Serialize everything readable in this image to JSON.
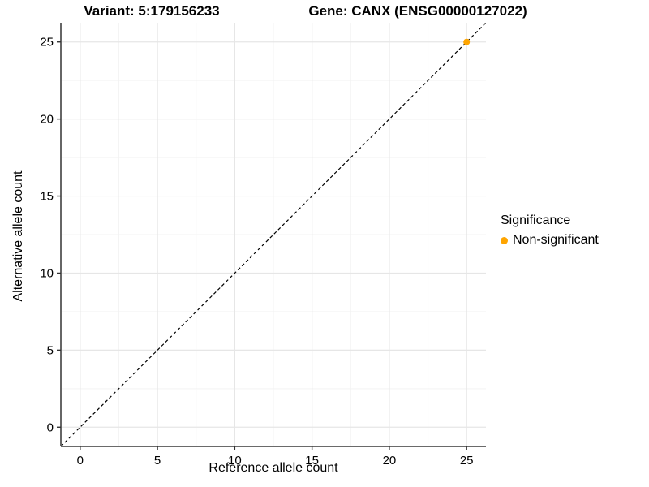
{
  "titles": {
    "variant": "Variant: 5:179156233",
    "gene": "Gene: CANX (ENSG00000127022)"
  },
  "legend": {
    "title": "Significance",
    "entries": [
      {
        "label": "Non-significant",
        "color": "#FFA500"
      }
    ]
  },
  "chart_data": {
    "type": "scatter",
    "title": "Variant: 5:179156233  /  Gene: CANX (ENSG00000127022)",
    "xlabel": "Reference allele count",
    "ylabel": "Alternative allele count",
    "xlim": [
      -1.25,
      26.25
    ],
    "ylim": [
      -1.25,
      26.25
    ],
    "x_ticks": [
      0,
      5,
      10,
      15,
      20,
      25
    ],
    "y_ticks": [
      0,
      5,
      10,
      15,
      20,
      25
    ],
    "x_minor_ticks": [
      2.5,
      7.5,
      12.5,
      17.5,
      22.5
    ],
    "y_minor_ticks": [
      2.5,
      7.5,
      12.5,
      17.5,
      22.5
    ],
    "grid": true,
    "series": [
      {
        "name": "Non-significant",
        "color": "#FFA500",
        "points": [
          {
            "x": 25,
            "y": 25
          }
        ]
      }
    ],
    "reference_line": {
      "type": "identity",
      "slope": 1,
      "intercept": 0,
      "style": "dashed",
      "color": "#000000"
    },
    "legend_position": "right",
    "colors": {
      "grid_major": "#e6e6e6",
      "grid_minor": "#f3f3f3",
      "axis_line": "#555555",
      "tick": "#333333",
      "text": "#000000"
    }
  }
}
